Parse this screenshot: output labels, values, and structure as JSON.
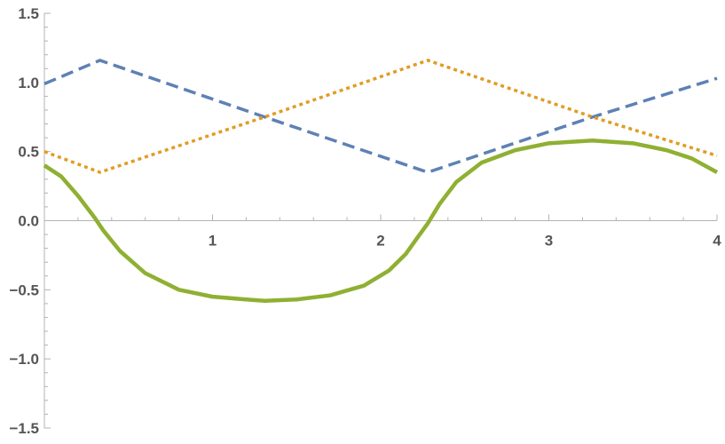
{
  "chart_data": {
    "type": "line",
    "title": "",
    "xlabel": "",
    "ylabel": "",
    "xlim": [
      0,
      4
    ],
    "ylim": [
      -1.5,
      1.5
    ],
    "grid": false,
    "legend": "none",
    "x_ticks": [
      1,
      2,
      3,
      4
    ],
    "x_tick_labels": [
      "1",
      "2",
      "3",
      "4"
    ],
    "y_ticks": [
      1.5,
      1.0,
      0.5,
      0.0,
      -0.5,
      -1.0,
      -1.5
    ],
    "y_tick_labels": [
      "1.5",
      "1.0",
      "0.5",
      "0.0",
      "−0.5",
      "−1.0",
      "−1.5"
    ],
    "series": [
      {
        "style": "dashed",
        "color": "#5e81b5",
        "x": [
          0,
          0.33,
          1.31,
          2.28,
          3.26,
          4
        ],
        "y": [
          0.99,
          1.16,
          0.75,
          0.35,
          0.75,
          1.03
        ]
      },
      {
        "style": "dotted",
        "color": "#e19c24",
        "x": [
          0,
          0.33,
          1.31,
          2.28,
          3.26,
          4
        ],
        "y": [
          0.5,
          0.35,
          0.75,
          1.16,
          0.75,
          0.47
        ]
      },
      {
        "style": "solid",
        "color": "#8fb032",
        "x": [
          0,
          0.1,
          0.2,
          0.3,
          0.35,
          0.45,
          0.6,
          0.8,
          1.0,
          1.2,
          1.31,
          1.5,
          1.7,
          1.9,
          2.05,
          2.15,
          2.22,
          2.28,
          2.35,
          2.45,
          2.6,
          2.8,
          3.0,
          3.26,
          3.5,
          3.7,
          3.85,
          4
        ],
        "y": [
          0.4,
          0.32,
          0.18,
          0.02,
          -0.07,
          -0.22,
          -0.38,
          -0.5,
          -0.55,
          -0.57,
          -0.58,
          -0.57,
          -0.54,
          -0.47,
          -0.36,
          -0.24,
          -0.12,
          -0.02,
          0.12,
          0.28,
          0.42,
          0.51,
          0.56,
          0.58,
          0.56,
          0.51,
          0.45,
          0.35
        ]
      }
    ]
  }
}
